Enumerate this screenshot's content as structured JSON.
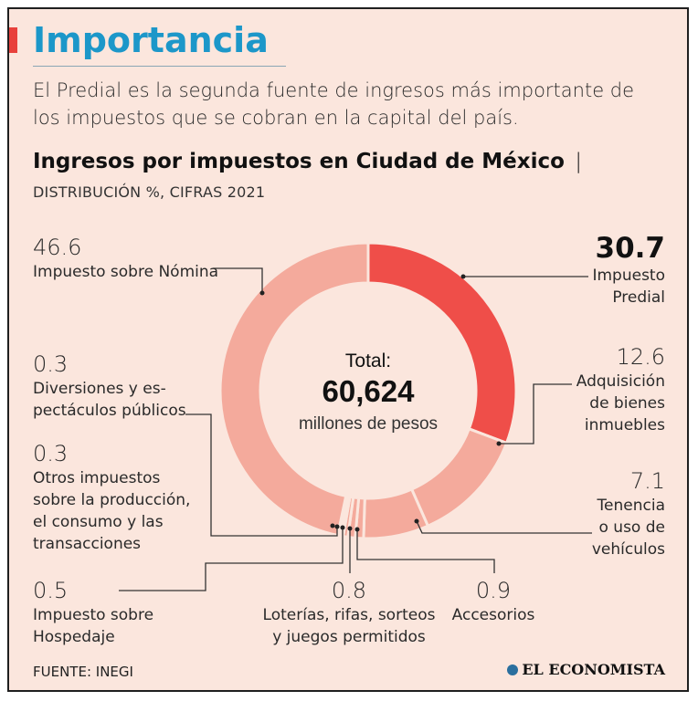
{
  "colors": {
    "background": "#fbe6dd",
    "heading": "#1c97c9",
    "accent": "#e8413c",
    "predial": "#ef4e49",
    "others": "#f4aa9c",
    "divider": "#fbe6dd",
    "line": "#333333"
  },
  "header": {
    "heading": "Importancia",
    "intro": "El Predial es la segunda fuente de ingresos más importante de los impuestos que se cobran en la capital del país.",
    "chart_title": "Ingresos por impuestos en Ciudad de México",
    "title_separator": "|",
    "subtitle": "DISTRIBUCIÓN %, CIFRAS 2021"
  },
  "center": {
    "label": "Total:",
    "value": "60,624",
    "unit": "millones de pesos"
  },
  "labels": {
    "nomina": {
      "value": "46.6",
      "name": "Impuesto sobre Nómina"
    },
    "predial": {
      "value": "30.7",
      "line1": "Impuesto",
      "line2": "Predial"
    },
    "adquisicion": {
      "value": "12.6",
      "line1": "Adquisición",
      "line2": "de bienes",
      "line3": "inmuebles"
    },
    "tenencia": {
      "value": "7.1",
      "line1": "Tenencia",
      "line2": "o uso de",
      "line3": "vehículos"
    },
    "accesorios": {
      "value": "0.9",
      "name": "Accesorios"
    },
    "loterias": {
      "value": "0.8",
      "line1": "Loterías, rifas, sorteos",
      "line2": "y juegos permitidos"
    },
    "hospedaje": {
      "value": "0.5",
      "line1": "Impuesto sobre",
      "line2": "Hospedaje"
    },
    "otros": {
      "value": "0.3",
      "line1": "Otros impuestos",
      "line2": "sobre la producción,",
      "line3": "el consumo y las",
      "line4": "transacciones"
    },
    "diversiones": {
      "value": "0.3",
      "line1": "Diversiones y es-",
      "line2": "pectáculos públicos"
    }
  },
  "chart_data": {
    "type": "pie",
    "donut": true,
    "title": "Ingresos por impuestos en Ciudad de México",
    "subtitle": "DISTRIBUCIÓN %, CIFRAS 2021",
    "total": "60,624 millones de pesos",
    "categories": [
      "Impuesto Predial",
      "Adquisición de bienes inmuebles",
      "Tenencia o uso de vehículos",
      "Accesorios",
      "Loterías, rifas, sorteos y juegos permitidos",
      "Impuesto sobre Hospedaje",
      "Otros impuestos sobre la producción, el consumo y las transacciones",
      "Diversiones y espectáculos públicos",
      "Impuesto sobre Nómina"
    ],
    "values": [
      30.7,
      12.6,
      7.1,
      0.9,
      0.8,
      0.5,
      0.3,
      0.3,
      46.6
    ],
    "highlight": "Impuesto Predial",
    "source": "FUENTE: INEGI"
  },
  "footer": {
    "source": "FUENTE: INEGI",
    "brand": "EL ECONOMISTA"
  }
}
